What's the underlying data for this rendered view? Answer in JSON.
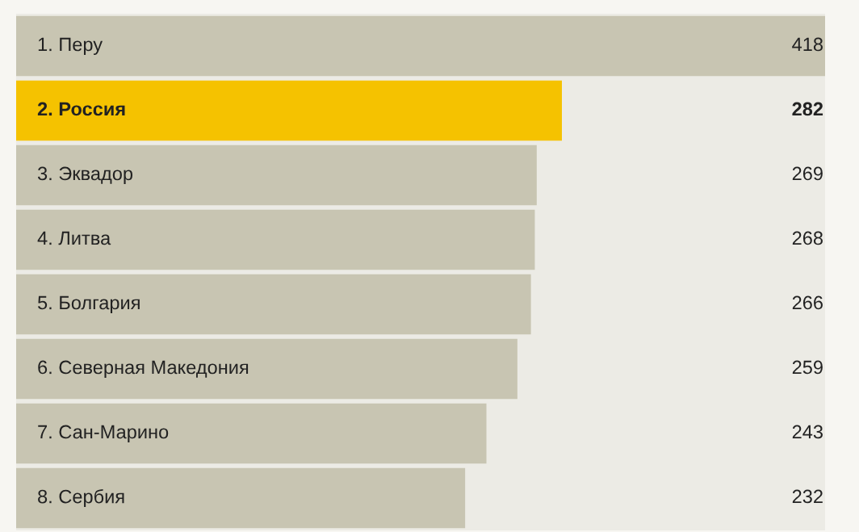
{
  "chart_data": {
    "type": "bar",
    "orientation": "horizontal",
    "categories": [
      "1. Перу",
      "2. Россия",
      "3. Эквадор",
      "4. Литва",
      "5. Болгария",
      "6. Северная Македония",
      "7. Сан-Марино",
      "8. Сербия"
    ],
    "values": [
      418,
      282,
      269,
      268,
      266,
      259,
      243,
      232
    ],
    "colors": [
      "#c8c5b2",
      "#f5c200",
      "#c8c5b2",
      "#c8c5b2",
      "#c8c5b2",
      "#c8c5b2",
      "#c8c5b2",
      "#c8c5b2"
    ],
    "data_labels": true
  }
}
